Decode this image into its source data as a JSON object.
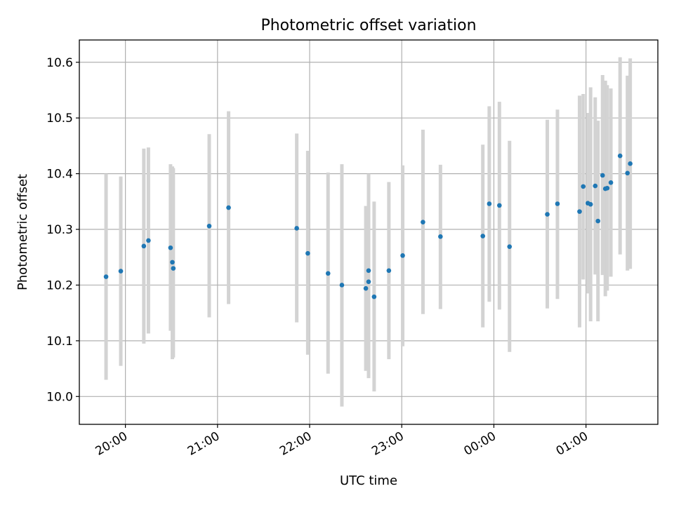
{
  "chart_data": {
    "type": "scatter",
    "title": "Photometric offset variation",
    "xlabel": "UTC time",
    "ylabel": "Photometric offset",
    "x_unit": "hours (UTC, continuing past midnight)",
    "xlim": [
      19.5,
      25.78
    ],
    "ylim": [
      9.95,
      10.64
    ],
    "grid": true,
    "x_ticks": [
      {
        "value": 20,
        "label": "20:00"
      },
      {
        "value": 21,
        "label": "21:00"
      },
      {
        "value": 22,
        "label": "22:00"
      },
      {
        "value": 23,
        "label": "23:00"
      },
      {
        "value": 24,
        "label": "00:00"
      },
      {
        "value": 25,
        "label": "01:00"
      }
    ],
    "y_ticks": [
      {
        "value": 10.0,
        "label": "10.0"
      },
      {
        "value": 10.1,
        "label": "10.1"
      },
      {
        "value": 10.2,
        "label": "10.2"
      },
      {
        "value": 10.3,
        "label": "10.3"
      },
      {
        "value": 10.4,
        "label": "10.4"
      },
      {
        "value": 10.5,
        "label": "10.5"
      },
      {
        "value": 10.6,
        "label": "10.6"
      }
    ],
    "colors": {
      "point": "#1f77b4",
      "errorbar": "#d3d3d3",
      "grid": "#b0b0b0"
    },
    "points": [
      {
        "x": 19.79,
        "y": 10.215,
        "low": 10.03,
        "high": 10.4
      },
      {
        "x": 19.95,
        "y": 10.225,
        "low": 10.055,
        "high": 10.395
      },
      {
        "x": 20.2,
        "y": 10.27,
        "low": 10.095,
        "high": 10.445
      },
      {
        "x": 20.25,
        "y": 10.28,
        "low": 10.113,
        "high": 10.447
      },
      {
        "x": 20.49,
        "y": 10.267,
        "low": 10.118,
        "high": 10.417
      },
      {
        "x": 20.51,
        "y": 10.241,
        "low": 10.067,
        "high": 10.413
      },
      {
        "x": 20.52,
        "y": 10.23,
        "low": 10.07,
        "high": 10.41
      },
      {
        "x": 20.91,
        "y": 10.306,
        "low": 10.142,
        "high": 10.471
      },
      {
        "x": 21.12,
        "y": 10.339,
        "low": 10.166,
        "high": 10.512
      },
      {
        "x": 21.86,
        "y": 10.302,
        "low": 10.133,
        "high": 10.472
      },
      {
        "x": 21.98,
        "y": 10.257,
        "low": 10.075,
        "high": 10.441
      },
      {
        "x": 22.2,
        "y": 10.221,
        "low": 10.041,
        "high": 10.402
      },
      {
        "x": 22.35,
        "y": 10.2,
        "low": 9.982,
        "high": 10.417
      },
      {
        "x": 22.61,
        "y": 10.194,
        "low": 10.046,
        "high": 10.342
      },
      {
        "x": 22.64,
        "y": 10.226,
        "low": 10.052,
        "high": 10.4
      },
      {
        "x": 22.64,
        "y": 10.206,
        "low": 10.033,
        "high": 10.38
      },
      {
        "x": 22.7,
        "y": 10.179,
        "low": 10.009,
        "high": 10.35
      },
      {
        "x": 22.86,
        "y": 10.226,
        "low": 10.067,
        "high": 10.385
      },
      {
        "x": 23.01,
        "y": 10.253,
        "low": 10.09,
        "high": 10.415
      },
      {
        "x": 23.23,
        "y": 10.313,
        "low": 10.148,
        "high": 10.479
      },
      {
        "x": 23.42,
        "y": 10.287,
        "low": 10.157,
        "high": 10.416
      },
      {
        "x": 23.88,
        "y": 10.288,
        "low": 10.124,
        "high": 10.452
      },
      {
        "x": 23.95,
        "y": 10.346,
        "low": 10.17,
        "high": 10.521
      },
      {
        "x": 24.06,
        "y": 10.343,
        "low": 10.156,
        "high": 10.529
      },
      {
        "x": 24.17,
        "y": 10.269,
        "low": 10.08,
        "high": 10.459
      },
      {
        "x": 24.58,
        "y": 10.327,
        "low": 10.158,
        "high": 10.497
      },
      {
        "x": 24.69,
        "y": 10.346,
        "low": 10.175,
        "high": 10.515
      },
      {
        "x": 24.93,
        "y": 10.332,
        "low": 10.124,
        "high": 10.54
      },
      {
        "x": 24.97,
        "y": 10.377,
        "low": 10.21,
        "high": 10.543
      },
      {
        "x": 25.02,
        "y": 10.347,
        "low": 10.185,
        "high": 10.509
      },
      {
        "x": 25.05,
        "y": 10.345,
        "low": 10.135,
        "high": 10.555
      },
      {
        "x": 25.1,
        "y": 10.378,
        "low": 10.219,
        "high": 10.537
      },
      {
        "x": 25.13,
        "y": 10.315,
        "low": 10.135,
        "high": 10.495
      },
      {
        "x": 25.18,
        "y": 10.397,
        "low": 10.218,
        "high": 10.577
      },
      {
        "x": 25.21,
        "y": 10.373,
        "low": 10.18,
        "high": 10.567
      },
      {
        "x": 25.23,
        "y": 10.374,
        "low": 10.19,
        "high": 10.559
      },
      {
        "x": 25.27,
        "y": 10.384,
        "low": 10.215,
        "high": 10.553
      },
      {
        "x": 25.37,
        "y": 10.432,
        "low": 10.255,
        "high": 10.609
      },
      {
        "x": 25.45,
        "y": 10.401,
        "low": 10.226,
        "high": 10.576
      },
      {
        "x": 25.48,
        "y": 10.418,
        "low": 10.229,
        "high": 10.607
      }
    ]
  }
}
